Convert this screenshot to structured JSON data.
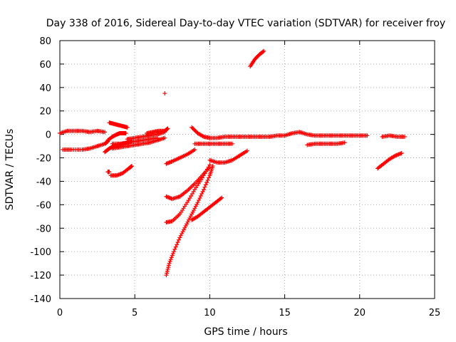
{
  "chart_data": {
    "type": "scatter",
    "title": "Day 338 of 2016, Sidereal Day-to-day VTEC variation (SDTVAR) for receiver froy",
    "xlabel": "GPS time / hours",
    "ylabel": "SDTVAR / TECUs",
    "xlim": [
      0,
      25
    ],
    "ylim": [
      -140,
      80
    ],
    "xticks": [
      0,
      5,
      10,
      15,
      20,
      25
    ],
    "yticks": [
      -140,
      -120,
      -100,
      -80,
      -60,
      -40,
      -20,
      0,
      20,
      40,
      60,
      80
    ],
    "grid": true,
    "marker": "+",
    "color": "#ff0000",
    "series": [
      {
        "x": [
          0.0,
          0.5,
          1.0,
          1.5,
          2.0,
          2.5,
          3.0
        ],
        "y": [
          1,
          3,
          3,
          3,
          2,
          3,
          2
        ]
      },
      {
        "x": [
          0.2,
          0.8,
          1.5,
          2.0,
          2.5,
          3.0,
          3.2
        ],
        "y": [
          -13,
          -13,
          -13,
          -12,
          -10,
          -8,
          -6
        ]
      },
      {
        "x": [
          3.2,
          3.5,
          3.8,
          4.0,
          4.2,
          4.4
        ],
        "y": [
          -5,
          -2,
          0,
          1,
          1,
          1
        ]
      },
      {
        "x": [
          3.3,
          3.6,
          3.9,
          4.2,
          4.5
        ],
        "y": [
          10,
          9,
          8,
          7,
          6
        ]
      },
      {
        "x": [
          3.0,
          3.3,
          3.6,
          3.9,
          4.2,
          4.5,
          4.8
        ],
        "y": [
          -15,
          -12,
          -10,
          -9,
          -8,
          -7,
          -6
        ]
      },
      {
        "x": [
          3.5,
          4.0,
          4.5,
          5.0,
          5.5,
          6.0,
          6.5
        ],
        "y": [
          -8,
          -8,
          -7,
          -6,
          -5,
          -4,
          -3
        ]
      },
      {
        "x": [
          3.5,
          4.0,
          4.5,
          5.0,
          5.5,
          6.0,
          6.5,
          7.0
        ],
        "y": [
          -12,
          -11,
          -10,
          -9,
          -8,
          -7,
          -5,
          -3
        ]
      },
      {
        "x": [
          4.5,
          5.0,
          5.5,
          6.0,
          6.5,
          7.0
        ],
        "y": [
          -4,
          -3,
          -2,
          -1,
          0,
          2
        ]
      },
      {
        "x": [
          5.8,
          6.2,
          6.6,
          7.0,
          7.2
        ],
        "y": [
          1,
          2,
          3,
          3,
          5
        ]
      },
      {
        "x": [
          3.2,
          3.3
        ],
        "y": [
          -32,
          -32
        ]
      },
      {
        "x": [
          3.4,
          3.8,
          4.2,
          4.6,
          4.8
        ],
        "y": [
          -35,
          -35,
          -33,
          -29,
          -27
        ]
      },
      {
        "x": [
          7.0
        ],
        "y": [
          35
        ]
      },
      {
        "x": [
          7.1,
          7.5,
          8.0,
          8.5,
          9.0
        ],
        "y": [
          -25,
          -23,
          -20,
          -17,
          -13
        ]
      },
      {
        "x": [
          7.1,
          7.5,
          8.0,
          8.5,
          9.0,
          9.5,
          10.0
        ],
        "y": [
          -53,
          -55,
          -53,
          -48,
          -42,
          -35,
          -28
        ]
      },
      {
        "x": [
          7.1,
          7.5,
          8.0,
          8.5,
          9.0,
          9.5,
          10.0
        ],
        "y": [
          -75,
          -74,
          -68,
          -58,
          -47,
          -37,
          -26
        ]
      },
      {
        "x": [
          8.8,
          9.2,
          9.6,
          10.0,
          10.4,
          10.8
        ],
        "y": [
          -73,
          -70,
          -66,
          -62,
          -58,
          -54
        ]
      },
      {
        "x": [
          7.1,
          7.3,
          7.6,
          8.0,
          8.4,
          8.8,
          9.2,
          9.6,
          10.0,
          10.2
        ],
        "y": [
          -120,
          -110,
          -100,
          -88,
          -78,
          -68,
          -58,
          -47,
          -35,
          -27
        ]
      },
      {
        "x": [
          10.0,
          10.5,
          11.0,
          11.5,
          12.0,
          12.5
        ],
        "y": [
          -22,
          -24,
          -24,
          -22,
          -18,
          -14
        ]
      },
      {
        "x": [
          8.8,
          9.2,
          9.6,
          10.0,
          10.5,
          11.0,
          11.5,
          12.0,
          12.5,
          13.0,
          13.5,
          14.0,
          14.5,
          15.0,
          15.5,
          16.0,
          16.5,
          17.0,
          17.5,
          18.0,
          18.5,
          19.0,
          19.5,
          20.0,
          20.5
        ],
        "y": [
          6,
          1,
          -2,
          -3,
          -3,
          -2,
          -2,
          -2,
          -2,
          -2,
          -2,
          -2,
          -1,
          -1,
          1,
          2,
          0,
          -1,
          -1,
          -1,
          -1,
          -1,
          -1,
          -1,
          -1
        ]
      },
      {
        "x": [
          9.0,
          9.5,
          10.0,
          10.5,
          11.0,
          11.5
        ],
        "y": [
          -8,
          -8,
          -8,
          -8,
          -8,
          -8
        ]
      },
      {
        "x": [
          12.7,
          13.0,
          13.3,
          13.6
        ],
        "y": [
          58,
          64,
          68,
          71
        ]
      },
      {
        "x": [
          16.5,
          17.0,
          17.5,
          18.0,
          18.5,
          19.0
        ],
        "y": [
          -9,
          -8,
          -8,
          -8,
          -8,
          -7
        ]
      },
      {
        "x": [
          21.5,
          22.0,
          22.5,
          23.0
        ],
        "y": [
          -2,
          -1,
          -2,
          -2
        ]
      },
      {
        "x": [
          21.2,
          21.6,
          22.0,
          22.4,
          22.8
        ],
        "y": [
          -29,
          -25,
          -21,
          -18,
          -16
        ]
      }
    ]
  }
}
